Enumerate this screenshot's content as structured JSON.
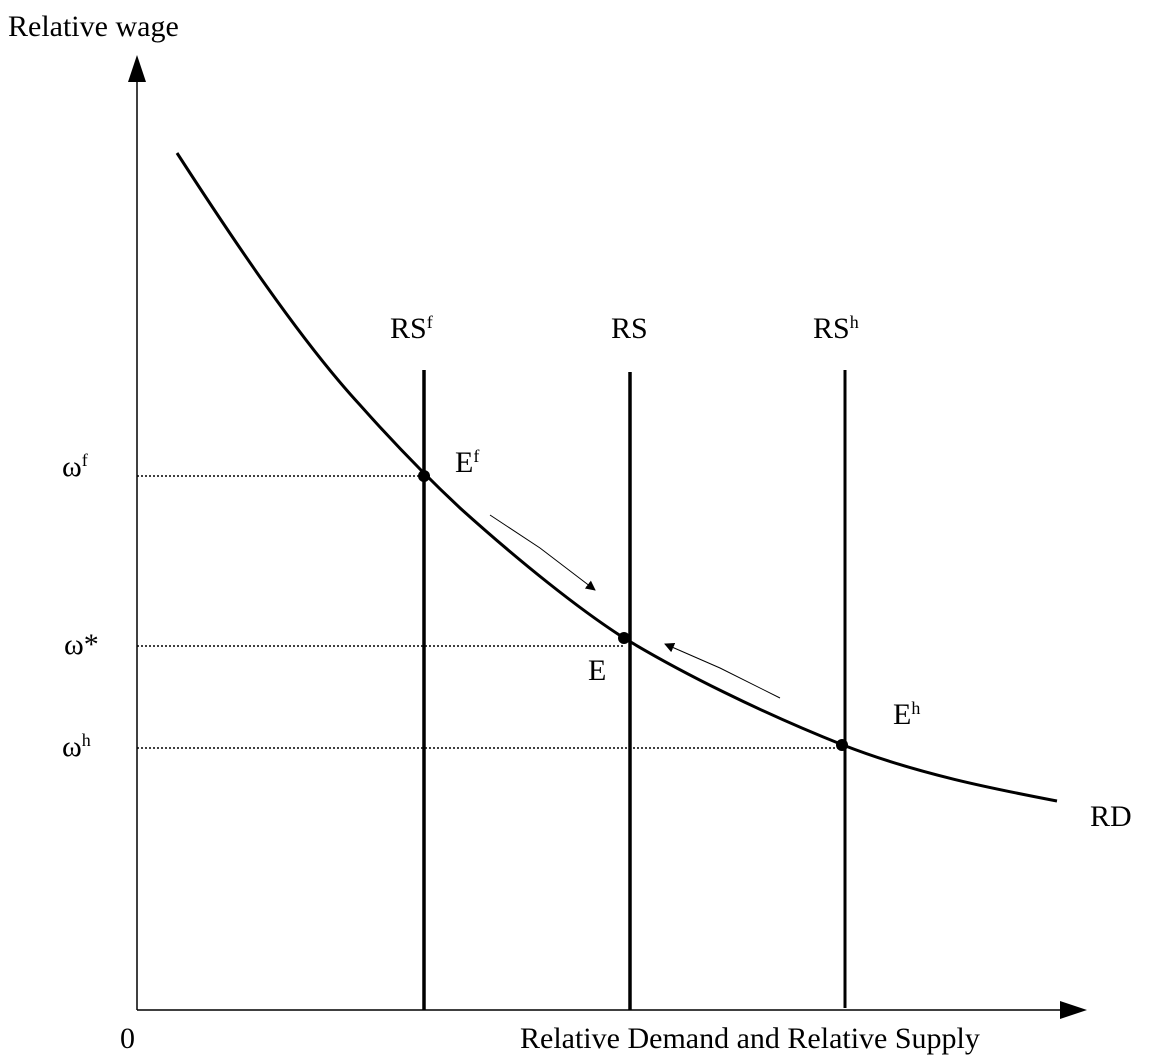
{
  "diagram": {
    "y_axis_label": "Relative wage",
    "x_axis_label": "Relative Demand and Relative Supply",
    "origin": "0",
    "curve_label": "RD",
    "supply_lines": [
      {
        "base": "RS",
        "sup": "f"
      },
      {
        "base": "RS"
      },
      {
        "base": "RS",
        "sup": "h"
      }
    ],
    "wage_levels": [
      {
        "base": "ω",
        "sup": "f"
      },
      {
        "base": "ω*"
      },
      {
        "base": "ω",
        "sup": "h"
      }
    ],
    "equilibria": [
      {
        "base": "E",
        "sup": "f"
      },
      {
        "base": "E"
      },
      {
        "base": "E",
        "sup": "h"
      }
    ]
  }
}
